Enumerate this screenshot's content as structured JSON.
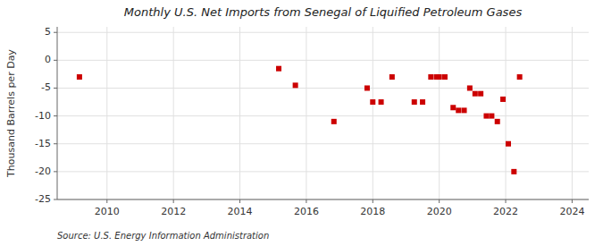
{
  "chart_data": {
    "type": "scatter",
    "title": "Monthly U.S. Net Imports from Senegal of Liquified Petroleum Gases",
    "ylabel": "Thousand Barrels per Day",
    "source": "Source: U.S. Energy Information Administration",
    "color": "#cc0000",
    "marker": "square",
    "grid": true,
    "xlim": [
      2008.5,
      2024.5
    ],
    "ylim": [
      -25,
      6
    ],
    "xticks": [
      2010,
      2012,
      2014,
      2016,
      2018,
      2020,
      2022,
      2024
    ],
    "yticks": [
      -25,
      -20,
      -15,
      -10,
      -5,
      0,
      5
    ],
    "x": [
      2009.17,
      2015.17,
      2015.67,
      2016.83,
      2017.83,
      2018.0,
      2018.25,
      2018.58,
      2019.25,
      2019.5,
      2019.75,
      2019.92,
      2020.0,
      2020.17,
      2020.42,
      2020.58,
      2020.75,
      2020.92,
      2021.08,
      2021.25,
      2021.42,
      2021.58,
      2021.75,
      2021.92,
      2022.08,
      2022.25,
      2022.42
    ],
    "values": [
      -3,
      -1.5,
      -4.5,
      -11,
      -5,
      -7.5,
      -7.5,
      -3,
      -7.5,
      -7.5,
      -3,
      -3,
      -3,
      -3,
      -8.5,
      -9,
      -9,
      -5,
      -6,
      -6,
      -10,
      -10,
      -11,
      -7,
      -15,
      -20,
      -3
    ]
  }
}
